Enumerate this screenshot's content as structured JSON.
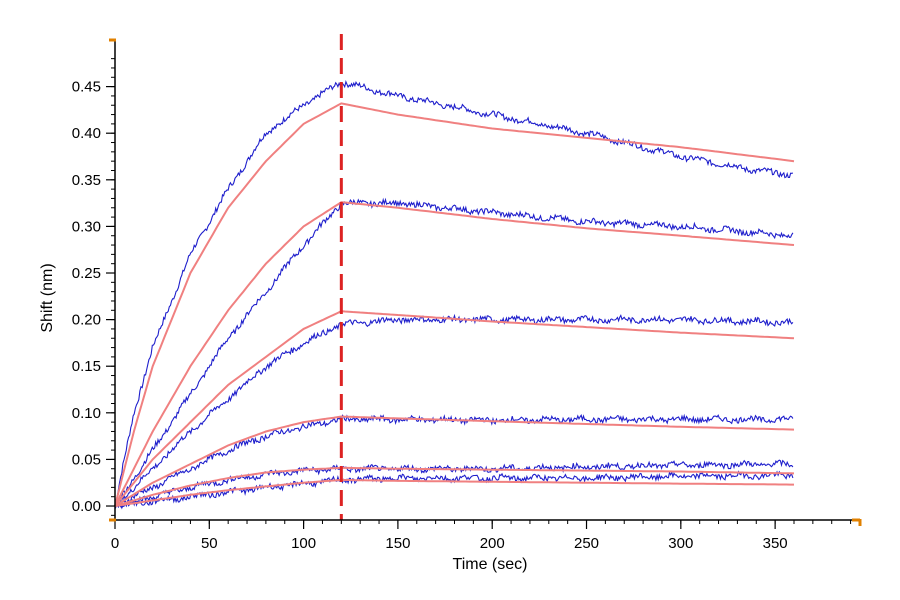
{
  "chart_data": {
    "type": "line",
    "title": "",
    "xlabel": "Time (sec)",
    "ylabel": "Shift (nm)",
    "xlim": [
      0,
      395
    ],
    "ylim": [
      -0.015,
      0.5
    ],
    "x_ticks": [
      0,
      50,
      100,
      150,
      200,
      250,
      300,
      350
    ],
    "y_ticks": [
      0.0,
      0.05,
      0.1,
      0.15,
      0.2,
      0.25,
      0.3,
      0.35,
      0.4,
      0.45
    ],
    "y_tick_labels": [
      "0.00",
      "0.05",
      "0.10",
      "0.15",
      "0.20",
      "0.25",
      "0.30",
      "0.35",
      "0.40",
      "0.45"
    ],
    "x_tick_labels": [
      "0",
      "50",
      "100",
      "150",
      "200",
      "250",
      "300",
      "350"
    ],
    "grid": false,
    "legend": "none",
    "association_end_time": 120,
    "colors": {
      "measured": "#1f1fcc",
      "fit": "#f08080",
      "marker": "#dd2222",
      "axis": "#000000",
      "axis_end": "#e08000"
    },
    "series": [
      {
        "measured": {
          "x": [
            0,
            10,
            20,
            40,
            60,
            80,
            100,
            120,
            150,
            200,
            250,
            300,
            340,
            360
          ],
          "y": [
            0.0,
            0.1,
            0.17,
            0.27,
            0.34,
            0.4,
            0.43,
            0.455,
            0.44,
            0.42,
            0.4,
            0.375,
            0.36,
            0.355
          ]
        },
        "fit": {
          "x": [
            0,
            10,
            20,
            40,
            60,
            80,
            100,
            120,
            150,
            200,
            250,
            300,
            360
          ],
          "y": [
            0.0,
            0.08,
            0.15,
            0.25,
            0.32,
            0.37,
            0.41,
            0.432,
            0.42,
            0.405,
            0.395,
            0.385,
            0.37
          ]
        }
      },
      {
        "measured": {
          "x": [
            0,
            20,
            40,
            60,
            80,
            100,
            120,
            150,
            200,
            250,
            300,
            360
          ],
          "y": [
            0.0,
            0.06,
            0.12,
            0.18,
            0.23,
            0.28,
            0.325,
            0.325,
            0.315,
            0.305,
            0.3,
            0.29
          ]
        },
        "fit": {
          "x": [
            0,
            20,
            40,
            60,
            80,
            100,
            120,
            150,
            200,
            250,
            300,
            360
          ],
          "y": [
            0.0,
            0.08,
            0.15,
            0.21,
            0.26,
            0.3,
            0.326,
            0.32,
            0.308,
            0.298,
            0.29,
            0.28
          ]
        }
      },
      {
        "measured": {
          "x": [
            0,
            20,
            40,
            60,
            80,
            100,
            120,
            150,
            200,
            250,
            300,
            360
          ],
          "y": [
            0.0,
            0.04,
            0.08,
            0.115,
            0.15,
            0.175,
            0.195,
            0.2,
            0.2,
            0.2,
            0.2,
            0.197
          ]
        },
        "fit": {
          "x": [
            0,
            20,
            40,
            60,
            80,
            100,
            120,
            150,
            200,
            250,
            300,
            360
          ],
          "y": [
            0.0,
            0.05,
            0.09,
            0.13,
            0.16,
            0.19,
            0.209,
            0.205,
            0.198,
            0.192,
            0.186,
            0.18
          ]
        }
      },
      {
        "measured": {
          "x": [
            0,
            20,
            40,
            60,
            80,
            100,
            120,
            150,
            200,
            250,
            300,
            360
          ],
          "y": [
            0.0,
            0.02,
            0.04,
            0.06,
            0.075,
            0.085,
            0.093,
            0.093,
            0.092,
            0.093,
            0.093,
            0.093
          ]
        },
        "fit": {
          "x": [
            0,
            20,
            40,
            60,
            80,
            100,
            120,
            150,
            200,
            250,
            300,
            360
          ],
          "y": [
            0.0,
            0.025,
            0.045,
            0.065,
            0.08,
            0.09,
            0.096,
            0.094,
            0.091,
            0.088,
            0.085,
            0.082
          ]
        }
      },
      {
        "measured": {
          "x": [
            0,
            20,
            40,
            60,
            80,
            100,
            120,
            150,
            200,
            250,
            300,
            360
          ],
          "y": [
            0.0,
            0.01,
            0.02,
            0.028,
            0.034,
            0.038,
            0.04,
            0.04,
            0.04,
            0.042,
            0.044,
            0.045
          ]
        },
        "fit": {
          "x": [
            0,
            20,
            40,
            60,
            80,
            100,
            120,
            150,
            200,
            250,
            300,
            360
          ],
          "y": [
            0.0,
            0.012,
            0.022,
            0.03,
            0.036,
            0.039,
            0.041,
            0.04,
            0.039,
            0.038,
            0.037,
            0.035
          ]
        }
      },
      {
        "measured": {
          "x": [
            0,
            20,
            40,
            60,
            80,
            100,
            120,
            150,
            200,
            250,
            300,
            360
          ],
          "y": [
            0.0,
            0.005,
            0.01,
            0.015,
            0.02,
            0.024,
            0.028,
            0.03,
            0.03,
            0.03,
            0.032,
            0.033
          ]
        },
        "fit": {
          "x": [
            0,
            20,
            40,
            60,
            80,
            100,
            120,
            150,
            200,
            250,
            300,
            360
          ],
          "y": [
            0.0,
            0.006,
            0.012,
            0.017,
            0.021,
            0.025,
            0.028,
            0.027,
            0.026,
            0.025,
            0.024,
            0.023
          ]
        }
      }
    ]
  }
}
